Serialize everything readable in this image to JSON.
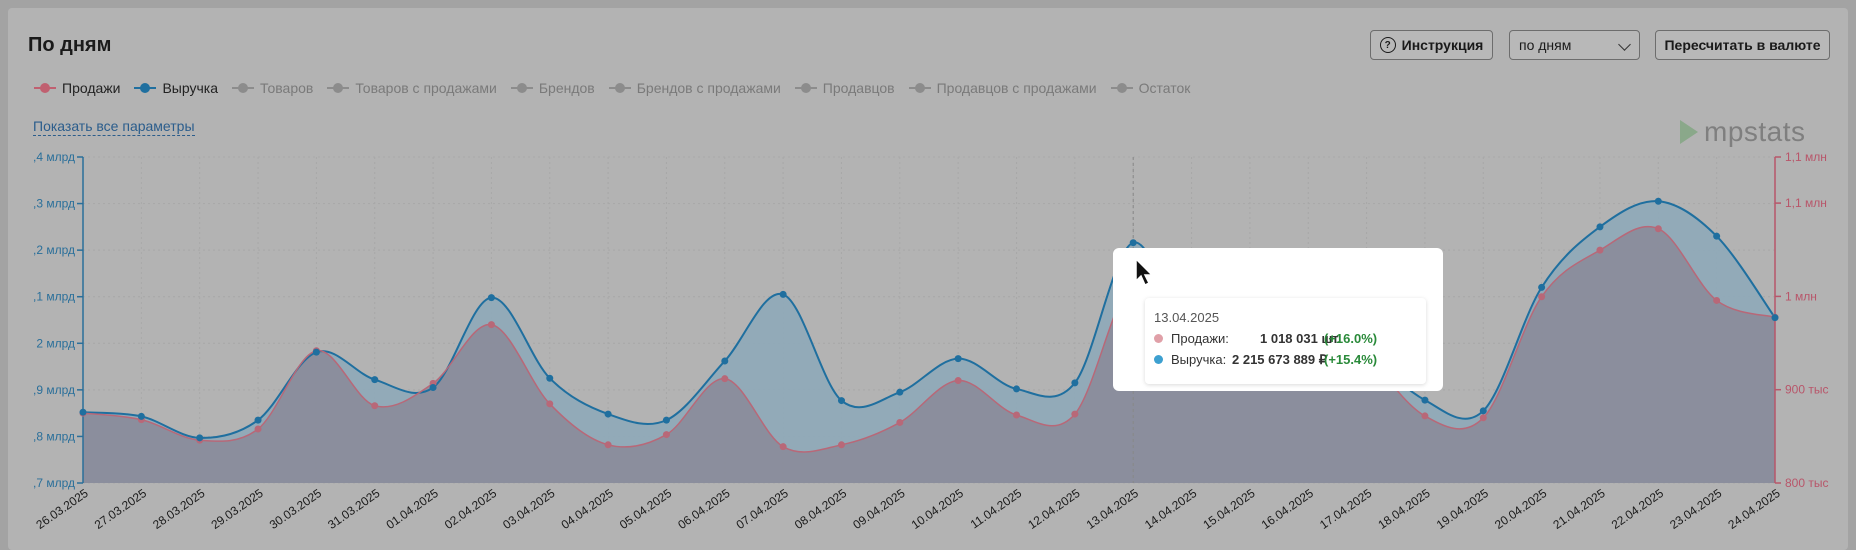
{
  "header": {
    "title": "По дням",
    "instruction_label": "Инструкция",
    "period_select": "по дням",
    "recalc_label": "Пересчитать в валюте",
    "show_all_label": "Показать все параметры",
    "logo_text": "mpstats"
  },
  "legend": [
    {
      "label": "Продажи",
      "active": true,
      "color": "#c06070"
    },
    {
      "label": "Выручка",
      "active": true,
      "color": "#1f6f9f"
    },
    {
      "label": "Товаров",
      "active": false,
      "color": "#8c8c8c"
    },
    {
      "label": "Товаров с продажами",
      "active": false,
      "color": "#8c8c8c"
    },
    {
      "label": "Брендов",
      "active": false,
      "color": "#8c8c8c"
    },
    {
      "label": "Брендов с продажами",
      "active": false,
      "color": "#8c8c8c"
    },
    {
      "label": "Продавцов",
      "active": false,
      "color": "#8c8c8c"
    },
    {
      "label": "Продавцов с продажами",
      "active": false,
      "color": "#8c8c8c"
    },
    {
      "label": "Остаток",
      "active": false,
      "color": "#8c8c8c"
    }
  ],
  "tooltip": {
    "date": "13.04.2025",
    "rows": [
      {
        "label": "Продажи:",
        "value": "1 018 031 шт.",
        "change": "(+16.0%)",
        "color": "#e0a0a8"
      },
      {
        "label": "Выручка:",
        "value": "2 215 673 889 ₽",
        "change": "(+15.4%)",
        "color": "#3da0d0"
      }
    ]
  },
  "chart_data": {
    "type": "area",
    "x": [
      "26.03.2025",
      "27.03.2025",
      "28.03.2025",
      "29.03.2025",
      "30.03.2025",
      "31.03.2025",
      "01.04.2025",
      "02.04.2025",
      "03.04.2025",
      "04.04.2025",
      "05.04.2025",
      "06.04.2025",
      "07.04.2025",
      "08.04.2025",
      "09.04.2025",
      "10.04.2025",
      "11.04.2025",
      "12.04.2025",
      "13.04.2025",
      "14.04.2025",
      "15.04.2025",
      "16.04.2025",
      "17.04.2025",
      "18.04.2025",
      "19.04.2025",
      "20.04.2025",
      "21.04.2025",
      "22.04.2025",
      "23.04.2025",
      "24.04.2025"
    ],
    "y_left": {
      "ticks": [
        ",7 млрд",
        ",8 млрд",
        ",9 млрд",
        "2 млрд",
        ",1 млрд",
        ",2 млрд",
        ",3 млрд",
        ",4 млрд"
      ],
      "range": [
        1.7,
        2.4
      ],
      "color": "#2a6f9a"
    },
    "y_right": {
      "ticks": [
        "800 тыс",
        "900 тыс",
        "1 млн",
        "1,1 млн",
        "1,1 млн"
      ],
      "range": [
        800,
        1150
      ],
      "color": "#b8566a"
    },
    "series": [
      {
        "name": "Выручка",
        "axis": "left",
        "color": "#1f6f9f",
        "values": [
          1.852,
          1.843,
          1.797,
          1.835,
          1.981,
          1.922,
          1.905,
          2.098,
          1.925,
          1.848,
          1.835,
          1.962,
          2.105,
          1.877,
          1.895,
          1.967,
          1.902,
          1.915,
          2.216,
          1.995,
          2.02,
          2.155,
          1.99,
          1.878,
          1.855,
          2.12,
          2.25,
          2.305,
          2.23,
          2.055
        ]
      },
      {
        "name": "Продажи",
        "axis": "right",
        "color": "#b86878",
        "values": [
          875,
          868,
          846,
          858,
          942,
          883,
          907,
          970,
          885,
          841,
          852,
          912,
          839,
          841,
          865,
          910,
          873,
          874,
          1018,
          980,
          1000,
          1020,
          940,
          872,
          870,
          1000,
          1050,
          1073,
          996,
          978
        ]
      }
    ],
    "grid": true
  }
}
